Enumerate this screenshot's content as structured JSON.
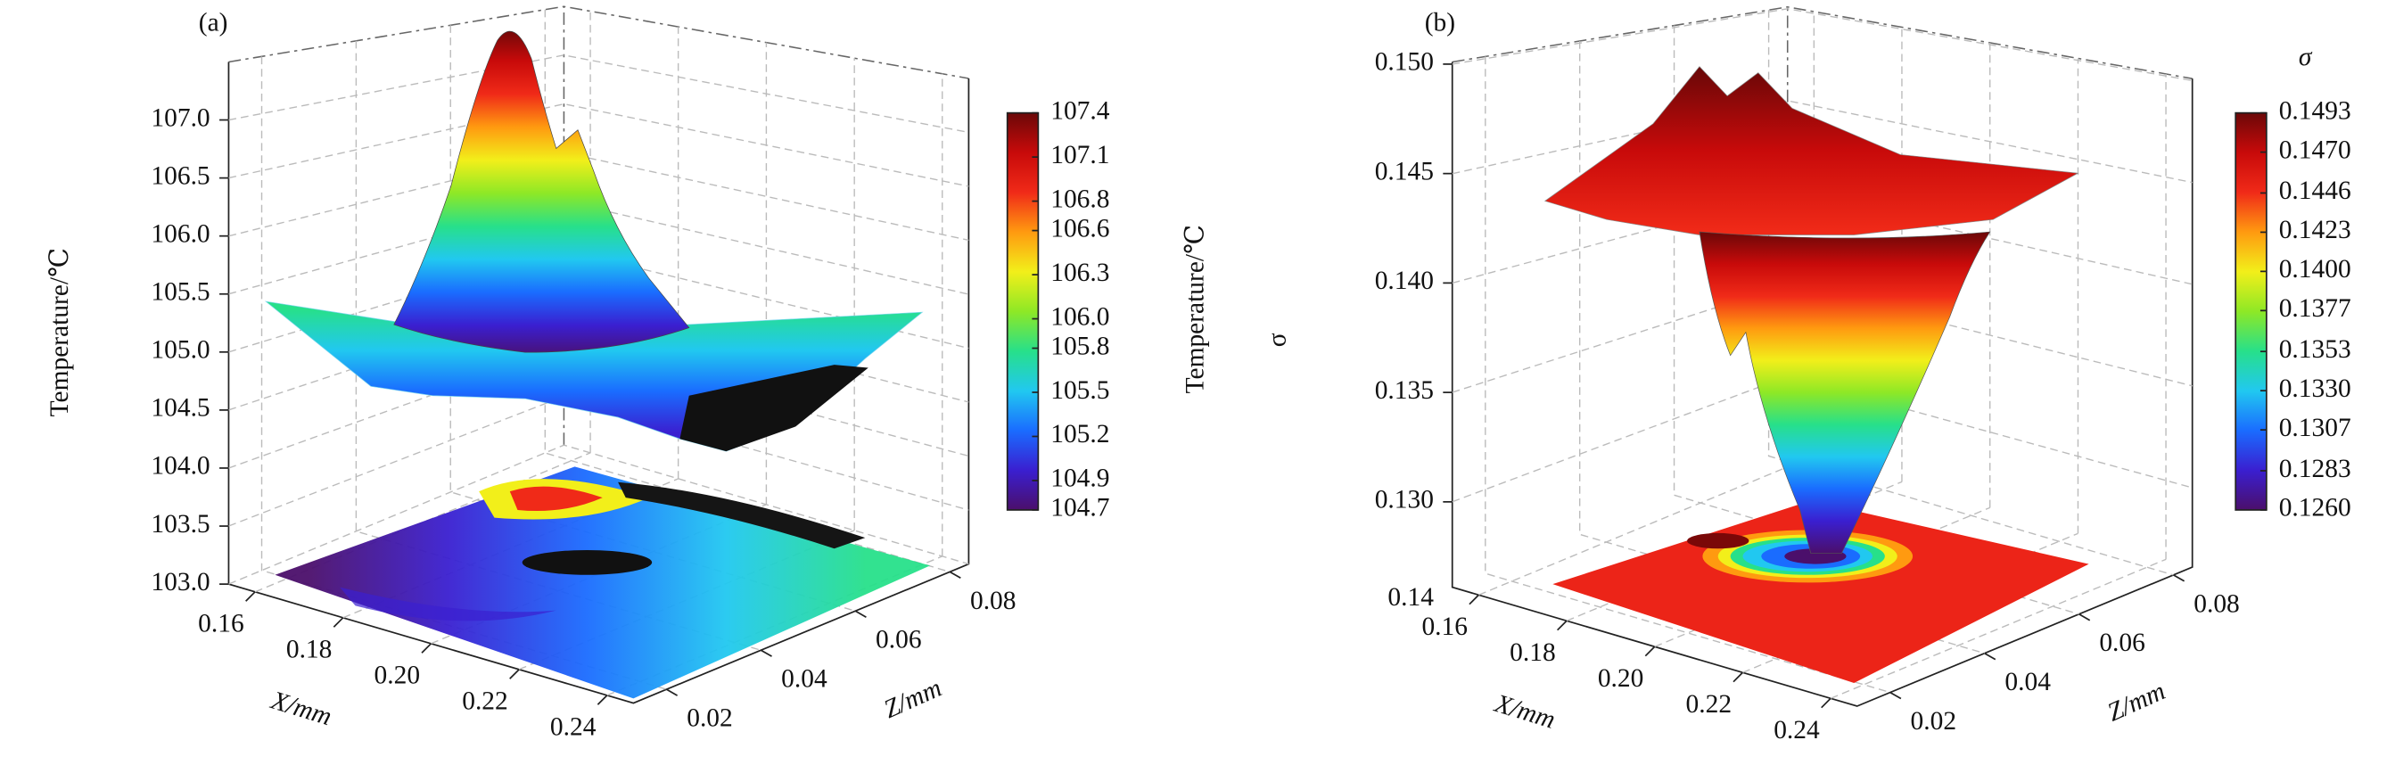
{
  "chart_data": [
    {
      "type": "surface3d",
      "label": "(a)",
      "zlabel": "Temperature/℃",
      "xlabel": "X/mm",
      "ylabel": "Z/mm",
      "xlim": [
        0.154,
        0.246
      ],
      "xticks": [
        0.16,
        0.18,
        {
          "value": 0.2,
          "label": "0.20"
        },
        0.22,
        0.24
      ],
      "ylim": [
        0.013,
        0.084
      ],
      "yticks": [
        0.02,
        0.04,
        0.06,
        0.08
      ],
      "zlim": [
        103,
        107.5
      ],
      "zticks": [
        {
          "value": 103,
          "label": "103.0"
        },
        103.5,
        {
          "value": 104,
          "label": "104.0"
        },
        104.5,
        {
          "value": 105,
          "label": "105.0"
        },
        105.5,
        {
          "value": 106,
          "label": "106.0"
        },
        106.5,
        {
          "value": 107,
          "label": "107.0"
        }
      ],
      "colorbar": {
        "title": "Temperature/℃",
        "lim": [
          104.7,
          107.4
        ],
        "ticks": [
          104.7,
          104.9,
          105.2,
          105.5,
          105.8,
          {
            "value": 106,
            "label": "106.0"
          },
          106.3,
          106.6,
          106.8,
          107.1,
          107.4
        ]
      },
      "colormap": [
        "#4b0f6b",
        "#3a1fd0",
        "#1a6cff",
        "#21c8f0",
        "#27e08a",
        "#8ee826",
        "#f2ef1a",
        "#ff9a10",
        "#f02a18",
        "#c80a0a",
        "#6b0808"
      ],
      "grid": true
    },
    {
      "type": "surface3d",
      "label": "(b)",
      "zlabel": "σ",
      "xlabel": "X/mm",
      "ylabel": "Z/mm",
      "floor_label": "0.14",
      "xlim": [
        0.154,
        0.246
      ],
      "xticks": [
        0.16,
        0.18,
        {
          "value": 0.2,
          "label": "0.20"
        },
        0.22,
        0.24
      ],
      "ylim": [
        0.013,
        0.084
      ],
      "yticks": [
        0.02,
        0.04,
        0.06,
        0.08
      ],
      "zlim": [
        0.1261,
        0.1501
      ],
      "zticks": [
        {
          "value": 0.13,
          "label": "0.130"
        },
        0.135,
        {
          "value": 0.14,
          "label": "0.140"
        },
        0.145,
        {
          "value": 0.15,
          "label": "0.150"
        }
      ],
      "colorbar": {
        "title": "σ",
        "lim": [
          0.126,
          0.1493
        ],
        "ticks": [
          {
            "value": 0.126,
            "label": "0.1260"
          },
          0.1283,
          0.1307,
          {
            "value": 0.133,
            "label": "0.1330"
          },
          0.1353,
          0.1377,
          {
            "value": 0.14,
            "label": "0.1400"
          },
          0.1423,
          0.1446,
          {
            "value": 0.147,
            "label": "0.1470"
          },
          0.1493
        ]
      },
      "colormap": [
        "#4b0f6b",
        "#3a1fd0",
        "#1a6cff",
        "#21c8f0",
        "#27e08a",
        "#8ee826",
        "#f2ef1a",
        "#ff9a10",
        "#f02a18",
        "#c80a0a",
        "#6b0808"
      ],
      "grid": true
    }
  ]
}
